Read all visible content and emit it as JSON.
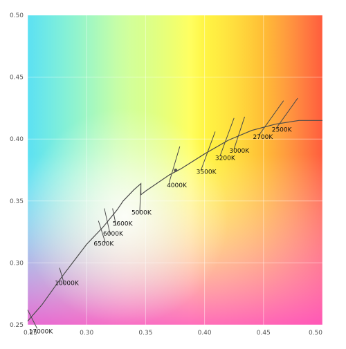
{
  "chart_data": {
    "type": "scatter",
    "title": "",
    "xlabel": "",
    "ylabel": "",
    "xlim": [
      0.25,
      0.5
    ],
    "ylim": [
      0.25,
      0.5
    ],
    "x_ticks": [
      "0.25",
      "0.30",
      "0.35",
      "0.40",
      "0.45",
      "0.50"
    ],
    "y_ticks": [
      "0.25",
      "0.30",
      "0.35",
      "0.40",
      "0.45",
      "0.50"
    ],
    "grid": true,
    "background": "CIE chromaticity color gradient",
    "locus": {
      "x": [
        0.25,
        0.262,
        0.28,
        0.3,
        0.314,
        0.32,
        0.326,
        0.331,
        0.34,
        0.346,
        0.346,
        0.35,
        0.37,
        0.38,
        0.4,
        0.42,
        0.44,
        0.46,
        0.48,
        0.5
      ],
      "y": [
        0.253,
        0.266,
        0.29,
        0.315,
        0.329,
        0.336,
        0.343,
        0.35,
        0.359,
        0.364,
        0.355,
        0.358,
        0.371,
        0.376,
        0.388,
        0.399,
        0.407,
        0.412,
        0.415,
        0.415
      ]
    },
    "marker": {
      "x": 0.3755,
      "y": 0.3747
    },
    "isotherms": [
      {
        "label": "17000K",
        "x1": 0.25,
        "y1": 0.262,
        "x2": 0.258,
        "y2": 0.247
      },
      {
        "label": "10000K",
        "x1": 0.277,
        "y1": 0.296,
        "x2": 0.281,
        "y2": 0.283
      },
      {
        "label": "6500K",
        "x1": 0.31,
        "y1": 0.334,
        "x2": 0.316,
        "y2": 0.316
      },
      {
        "label": "6000K",
        "x1": 0.315,
        "y1": 0.344,
        "x2": 0.32,
        "y2": 0.323
      },
      {
        "label": "5600K",
        "x1": 0.322,
        "y1": 0.344,
        "x2": 0.325,
        "y2": 0.33
      },
      {
        "label": "5000K",
        "x1": 0.346,
        "y1": 0.364,
        "x2": 0.345,
        "y2": 0.34
      },
      {
        "label": "4000K",
        "x1": 0.379,
        "y1": 0.394,
        "x2": 0.37,
        "y2": 0.365
      },
      {
        "label": "3500K",
        "x1": 0.409,
        "y1": 0.406,
        "x2": 0.397,
        "y2": 0.375
      },
      {
        "label": "3200K",
        "x1": 0.425,
        "y1": 0.417,
        "x2": 0.413,
        "y2": 0.386
      },
      {
        "label": "3000K",
        "x1": 0.434,
        "y1": 0.418,
        "x2": 0.425,
        "y2": 0.392
      },
      {
        "label": "2700K",
        "x1": 0.467,
        "y1": 0.431,
        "x2": 0.446,
        "y2": 0.403
      },
      {
        "label": "2500K",
        "x1": 0.479,
        "y1": 0.433,
        "x2": 0.461,
        "y2": 0.409
      }
    ],
    "isotherm_labels": [
      {
        "label": "17000K",
        "x": 0.251,
        "y": 0.243
      },
      {
        "label": "10000K",
        "x": 0.273,
        "y": 0.282
      },
      {
        "label": "6500K",
        "x": 0.306,
        "y": 0.314
      },
      {
        "label": "6000K",
        "x": 0.314,
        "y": 0.322
      },
      {
        "label": "5600K",
        "x": 0.322,
        "y": 0.33
      },
      {
        "label": "5000K",
        "x": 0.338,
        "y": 0.339
      },
      {
        "label": "4000K",
        "x": 0.368,
        "y": 0.361
      },
      {
        "label": "3500K",
        "x": 0.393,
        "y": 0.372
      },
      {
        "label": "3200K",
        "x": 0.409,
        "y": 0.383
      },
      {
        "label": "3000K",
        "x": 0.421,
        "y": 0.389
      },
      {
        "label": "2700K",
        "x": 0.441,
        "y": 0.4
      },
      {
        "label": "2500K",
        "x": 0.457,
        "y": 0.406
      }
    ]
  }
}
